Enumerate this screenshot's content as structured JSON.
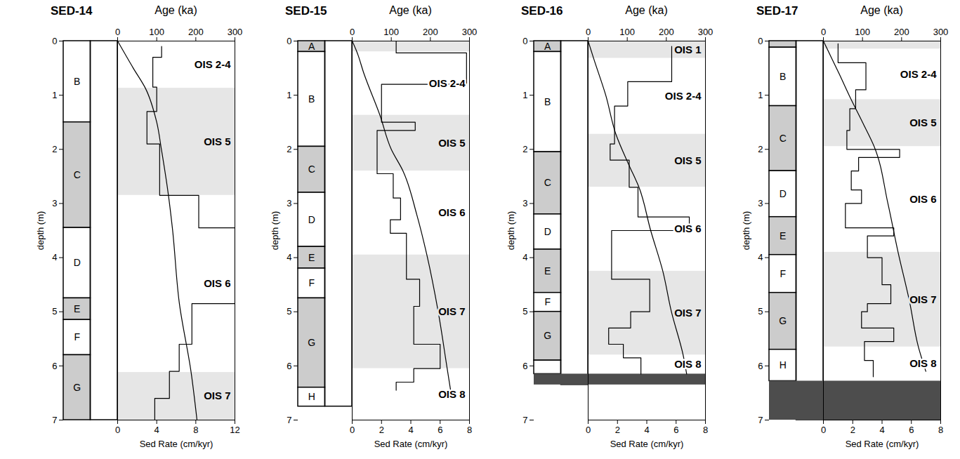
{
  "chart_data": [
    {
      "type": "line",
      "title": "SED-14",
      "x_label": "Sed Rate (cm/kyr)",
      "x2_label": "Age (ka)",
      "y_label": "depth (m)",
      "xlim": [
        0,
        12
      ],
      "xticks": [
        0,
        4,
        8,
        12
      ],
      "x2lim": [
        0,
        300
      ],
      "x2ticks": [
        0,
        100,
        200,
        300
      ],
      "ylim": [
        0,
        7
      ],
      "yticks": [
        0,
        1,
        2,
        3,
        4,
        5,
        6,
        7
      ],
      "units": [
        {
          "label": "B",
          "top": 0,
          "bottom": 1.5,
          "color": "#ffffff"
        },
        {
          "label": "C",
          "top": 1.5,
          "bottom": 3.45,
          "color": "#cccccc"
        },
        {
          "label": "D",
          "top": 3.45,
          "bottom": 4.75,
          "color": "#ffffff"
        },
        {
          "label": "E",
          "top": 4.75,
          "bottom": 5.15,
          "color": "#cccccc"
        },
        {
          "label": "F",
          "top": 5.15,
          "bottom": 5.8,
          "color": "#ffffff"
        },
        {
          "label": "G",
          "top": 5.8,
          "bottom": 7.0,
          "color": "#cccccc"
        }
      ],
      "ois": [
        {
          "label": "OIS 2-4",
          "top": 0,
          "bottom": 0.87,
          "color": "#ffffff"
        },
        {
          "label": "OIS 5",
          "top": 0.87,
          "bottom": 2.85,
          "color": "#e6e6e6"
        },
        {
          "label": "OIS 6",
          "top": 2.85,
          "bottom": 6.12,
          "color": "#ffffff"
        },
        {
          "label": "OIS 7",
          "top": 6.12,
          "bottom": 7.0,
          "color": "#e6e6e6"
        }
      ],
      "sed_rate": {
        "color": "#000000",
        "depth": [
          0.1,
          0.3,
          0.85,
          1.3,
          1.9,
          2.85,
          3.45,
          4.85,
          5.6,
          6.1,
          6.6,
          7.0
        ],
        "values": [
          4.5,
          3.6,
          4.0,
          3.0,
          4.3,
          8.3,
          12.0,
          7.6,
          6.3,
          5.3,
          3.8
        ]
      },
      "age": {
        "color": "#000000",
        "depth": [
          0,
          0.5,
          0.87,
          1.5,
          2.0,
          2.85,
          3.45,
          4.85,
          6.12,
          7.0
        ],
        "values": [
          0,
          40,
          71,
          100,
          112,
          130,
          140,
          158,
          188,
          203
        ]
      }
    },
    {
      "type": "line",
      "title": "SED-15",
      "x_label": "Sed Rate (cm/kyr)",
      "x2_label": "Age (ka)",
      "y_label": "depth (m)",
      "xlim": [
        0,
        8
      ],
      "xticks": [
        0,
        2,
        4,
        6,
        8
      ],
      "x2lim": [
        0,
        300
      ],
      "x2ticks": [
        0,
        100,
        200,
        300
      ],
      "ylim": [
        0,
        7
      ],
      "yticks": [
        0,
        1,
        2,
        3,
        4,
        5,
        6,
        7
      ],
      "units": [
        {
          "label": "A",
          "top": 0,
          "bottom": 0.2,
          "color": "#cccccc"
        },
        {
          "label": "B",
          "top": 0.2,
          "bottom": 1.95,
          "color": "#ffffff"
        },
        {
          "label": "C",
          "top": 1.95,
          "bottom": 2.8,
          "color": "#cccccc"
        },
        {
          "label": "D",
          "top": 2.8,
          "bottom": 3.8,
          "color": "#ffffff"
        },
        {
          "label": "E",
          "top": 3.8,
          "bottom": 4.2,
          "color": "#cccccc"
        },
        {
          "label": "F",
          "top": 4.2,
          "bottom": 4.75,
          "color": "#ffffff"
        },
        {
          "label": "G",
          "top": 4.75,
          "bottom": 6.4,
          "color": "#cccccc"
        },
        {
          "label": "H",
          "top": 6.4,
          "bottom": 6.75,
          "color": "#ffffff"
        }
      ],
      "ois": [
        {
          "label": null,
          "top": 0,
          "bottom": 0.2,
          "color": "#e6e6e6"
        },
        {
          "label": "OIS 2-4",
          "top": 0.2,
          "bottom": 1.37,
          "color": "#ffffff"
        },
        {
          "label": "OIS 5",
          "top": 1.37,
          "bottom": 2.4,
          "color": "#e6e6e6"
        },
        {
          "label": "OIS 6",
          "top": 2.4,
          "bottom": 3.95,
          "color": "#ffffff"
        },
        {
          "label": "OIS 7",
          "top": 3.95,
          "bottom": 6.05,
          "color": "#e6e6e6"
        },
        {
          "label": "OIS 8",
          "top": 6.05,
          "bottom": 7.0,
          "color": "#ffffff"
        }
      ],
      "sed_rate": {
        "color": "#000000",
        "depth": [
          0,
          0.22,
          0.8,
          1.5,
          1.65,
          2.45,
          2.9,
          3.3,
          3.55,
          4.4,
          4.9,
          5.6,
          6.05,
          6.3,
          6.45
        ],
        "values": [
          3.0,
          7.8,
          2.0,
          4.3,
          1.7,
          2.8,
          3.3,
          2.6,
          3.7,
          4.6,
          4.2,
          6.0,
          4.2,
          3.0
        ]
      },
      "age": {
        "color": "#000000",
        "depth": [
          0,
          0.2,
          0.6,
          1.37,
          2.0,
          2.4,
          3.2,
          3.95,
          5.0,
          6.05,
          6.6
        ],
        "values": [
          0,
          12,
          30,
          71,
          100,
          130,
          165,
          191,
          220,
          243,
          255
        ]
      }
    },
    {
      "type": "line",
      "title": "SED-16",
      "x_label": "Sed Rate (cm/kyr)",
      "x2_label": "Age (ka)",
      "y_label": "depth (m)",
      "xlim": [
        0,
        8
      ],
      "xticks": [
        0,
        2,
        4,
        6,
        8
      ],
      "x2lim": [
        0,
        300
      ],
      "x2ticks": [
        0,
        100,
        200,
        300
      ],
      "ylim": [
        0,
        7
      ],
      "yticks": [
        0,
        1,
        2,
        3,
        4,
        5,
        6,
        7
      ],
      "units": [
        {
          "label": "A",
          "top": 0,
          "bottom": 0.2,
          "color": "#cccccc"
        },
        {
          "label": "B",
          "top": 0.2,
          "bottom": 2.05,
          "color": "#ffffff"
        },
        {
          "label": "C",
          "top": 2.05,
          "bottom": 3.2,
          "color": "#cccccc"
        },
        {
          "label": "D",
          "top": 3.2,
          "bottom": 3.85,
          "color": "#ffffff"
        },
        {
          "label": "E",
          "top": 3.85,
          "bottom": 4.65,
          "color": "#cccccc"
        },
        {
          "label": "F",
          "top": 4.65,
          "bottom": 5.0,
          "color": "#ffffff"
        },
        {
          "label": "G",
          "top": 5.0,
          "bottom": 5.9,
          "color": "#cccccc"
        },
        {
          "label": null,
          "top": 5.9,
          "bottom": 6.15,
          "color": "#ffffff"
        }
      ],
      "basement": {
        "top": 6.15,
        "bottom": 6.35,
        "color": "#4d4d4d"
      },
      "ois": [
        {
          "label": "OIS 1",
          "top": 0,
          "bottom": 0.32,
          "color": "#e6e6e6"
        },
        {
          "label": "OIS 2-4",
          "top": 0.32,
          "bottom": 1.72,
          "color": "#ffffff"
        },
        {
          "label": "OIS 5",
          "top": 1.72,
          "bottom": 2.7,
          "color": "#e6e6e6"
        },
        {
          "label": "OIS 6",
          "top": 2.7,
          "bottom": 4.25,
          "color": "#ffffff"
        },
        {
          "label": "OIS 7",
          "top": 4.25,
          "bottom": 5.8,
          "color": "#e6e6e6"
        },
        {
          "label": "OIS 8",
          "top": 5.8,
          "bottom": 6.15,
          "color": "#ffffff"
        }
      ],
      "sed_rate": {
        "color": "#000000",
        "depth": [
          0.1,
          0.75,
          1.2,
          1.9,
          2.2,
          2.7,
          3.25,
          3.5,
          4.4,
          5.0,
          5.3,
          5.6,
          5.85,
          6.15
        ],
        "values": [
          5.7,
          2.7,
          1.8,
          1.5,
          2.8,
          3.4,
          6.9,
          1.6,
          4.2,
          2.9,
          1.4,
          2.4,
          3.6
        ]
      },
      "age": {
        "color": "#000000",
        "depth": [
          0,
          0.32,
          1.0,
          1.72,
          2.3,
          2.7,
          3.5,
          4.25,
          5.0,
          5.8,
          6.15
        ],
        "values": [
          0,
          14,
          45,
          71,
          105,
          130,
          160,
          191,
          213,
          243,
          252
        ]
      }
    },
    {
      "type": "line",
      "title": "SED-17",
      "x_label": "Sed Rate (cm/kyr)",
      "x2_label": "Age (ka)",
      "y_label": "depth (m)",
      "xlim": [
        0,
        8
      ],
      "xticks": [
        0,
        2,
        4,
        6,
        8
      ],
      "x2lim": [
        0,
        300
      ],
      "x2ticks": [
        0,
        100,
        200,
        300
      ],
      "ylim": [
        0,
        7
      ],
      "yticks": [
        0,
        1,
        2,
        3,
        4,
        5,
        6,
        7
      ],
      "units": [
        {
          "label": null,
          "top": 0,
          "bottom": 0.12,
          "color": "#cccccc"
        },
        {
          "label": "B",
          "top": 0.12,
          "bottom": 1.2,
          "color": "#ffffff"
        },
        {
          "label": "C",
          "top": 1.2,
          "bottom": 2.4,
          "color": "#cccccc"
        },
        {
          "label": "D",
          "top": 2.4,
          "bottom": 3.25,
          "color": "#ffffff"
        },
        {
          "label": "E",
          "top": 3.25,
          "bottom": 3.95,
          "color": "#cccccc"
        },
        {
          "label": "F",
          "top": 3.95,
          "bottom": 4.65,
          "color": "#ffffff"
        },
        {
          "label": "G",
          "top": 4.65,
          "bottom": 5.7,
          "color": "#cccccc"
        },
        {
          "label": "H",
          "top": 5.7,
          "bottom": 6.28,
          "color": "#ffffff"
        }
      ],
      "basement": {
        "top": 6.28,
        "bottom": 7.0,
        "color": "#4d4d4d"
      },
      "ois": [
        {
          "label": null,
          "top": 0,
          "bottom": 0.15,
          "color": "#e6e6e6"
        },
        {
          "label": "OIS 2-4",
          "top": 0.15,
          "bottom": 1.08,
          "color": "#ffffff"
        },
        {
          "label": "OIS 5",
          "top": 1.08,
          "bottom": 1.95,
          "color": "#e6e6e6"
        },
        {
          "label": "OIS 6",
          "top": 1.95,
          "bottom": 3.9,
          "color": "#ffffff"
        },
        {
          "label": "OIS 7",
          "top": 3.9,
          "bottom": 5.65,
          "color": "#e6e6e6"
        },
        {
          "label": "OIS 8",
          "top": 5.65,
          "bottom": 6.28,
          "color": "#ffffff"
        }
      ],
      "sed_rate": {
        "color": "#000000",
        "depth": [
          0.05,
          0.4,
          0.9,
          1.25,
          1.65,
          2.0,
          2.15,
          2.4,
          2.75,
          3.0,
          3.45,
          3.6,
          4.0,
          4.5,
          4.85,
          5.0,
          5.3,
          5.55,
          5.9,
          6.2
        ],
        "values": [
          1.0,
          2.9,
          2.2,
          1.8,
          1.6,
          5.2,
          2.4,
          1.9,
          2.6,
          1.5,
          4.8,
          3.0,
          4.0,
          4.6,
          3.0,
          2.6,
          4.8,
          2.8,
          3.4
        ]
      },
      "age": {
        "color": "#000000",
        "depth": [
          0,
          0.15,
          0.6,
          1.08,
          1.5,
          1.95,
          3.0,
          3.9,
          4.8,
          5.65,
          6.1
        ],
        "values": [
          0,
          10,
          40,
          71,
          100,
          130,
          165,
          191,
          220,
          243,
          262
        ]
      }
    }
  ]
}
